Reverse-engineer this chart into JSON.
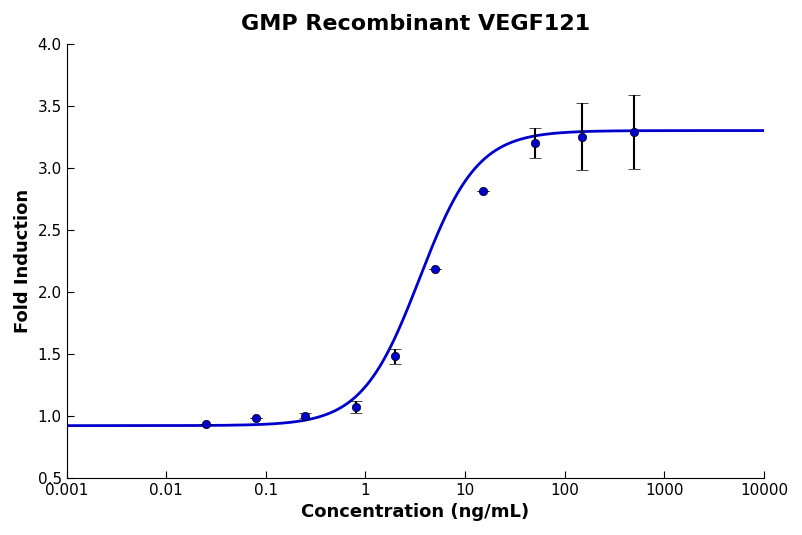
{
  "title": "GMP Recombinant VEGF121",
  "xlabel": "Concentration (ng/mL)",
  "ylabel": "Fold Induction",
  "x_data": [
    0.025,
    0.08,
    0.25,
    0.8,
    2.0,
    5.0,
    15.0,
    50.0,
    150.0,
    500.0
  ],
  "y_data": [
    0.93,
    0.98,
    1.0,
    1.07,
    1.48,
    2.18,
    2.81,
    3.2,
    3.25,
    3.29
  ],
  "y_err": [
    0.0,
    0.0,
    0.02,
    0.05,
    0.06,
    0.0,
    0.0,
    0.12,
    0.27,
    0.3
  ],
  "xlim_min": 0.001,
  "xlim_max": 10000,
  "ylim": [
    0.5,
    4.0
  ],
  "line_color": "#0000CD",
  "marker_color": "#0000CD",
  "title_fontsize": 16,
  "label_fontsize": 13,
  "tick_fontsize": 11,
  "xtick_labels": [
    "0.001",
    "0.01",
    "0.1",
    "1",
    "10",
    "100",
    "1000",
    "10000"
  ],
  "xtick_values": [
    0.001,
    0.01,
    0.1,
    1,
    10,
    100,
    1000,
    10000
  ],
  "ytick_values": [
    0.5,
    1.0,
    1.5,
    2.0,
    2.5,
    3.0,
    3.5,
    4.0
  ]
}
